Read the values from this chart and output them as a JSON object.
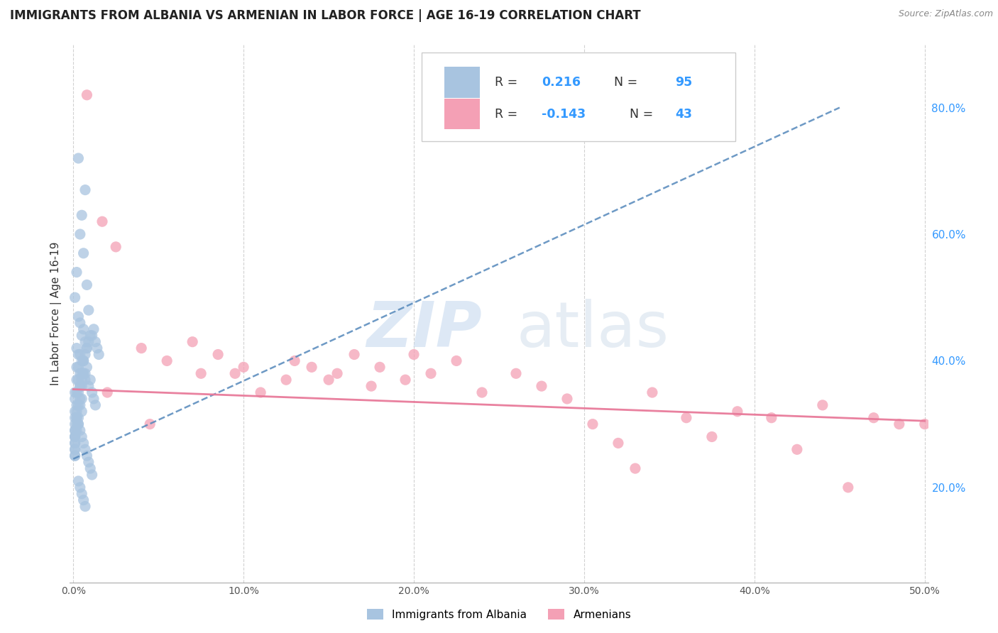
{
  "title": "IMMIGRANTS FROM ALBANIA VS ARMENIAN IN LABOR FORCE | AGE 16-19 CORRELATION CHART",
  "source": "Source: ZipAtlas.com",
  "ylabel": "In Labor Force | Age 16-19",
  "xlim": [
    -0.002,
    0.502
  ],
  "ylim": [
    0.05,
    0.9
  ],
  "xticks": [
    0.0,
    0.1,
    0.2,
    0.3,
    0.4,
    0.5
  ],
  "xticklabels": [
    "0.0%",
    "10.0%",
    "20.0%",
    "30.0%",
    "40.0%",
    "50.0%"
  ],
  "yticks_right": [
    0.2,
    0.4,
    0.6,
    0.8
  ],
  "yticklabels_right": [
    "20.0%",
    "40.0%",
    "60.0%",
    "80.0%"
  ],
  "albania_color": "#a8c4e0",
  "armenian_color": "#f4a0b5",
  "albania_trend_color": "#5588bb",
  "armenian_trend_color": "#e87a9a",
  "legend_labels": [
    "Immigrants from Albania",
    "Armenians"
  ],
  "albania_R": "0.216",
  "albania_N": "95",
  "armenian_R": "-0.143",
  "armenian_N": "43",
  "albania_points_x": [
    0.003,
    0.007,
    0.005,
    0.004,
    0.006,
    0.002,
    0.008,
    0.001,
    0.009,
    0.003,
    0.004,
    0.006,
    0.005,
    0.007,
    0.002,
    0.008,
    0.003,
    0.004,
    0.005,
    0.006,
    0.002,
    0.003,
    0.004,
    0.005,
    0.006,
    0.007,
    0.002,
    0.003,
    0.004,
    0.005,
    0.001,
    0.002,
    0.003,
    0.004,
    0.005,
    0.001,
    0.002,
    0.003,
    0.004,
    0.005,
    0.001,
    0.002,
    0.003,
    0.001,
    0.002,
    0.003,
    0.001,
    0.002,
    0.001,
    0.002,
    0.001,
    0.001,
    0.001,
    0.001,
    0.001,
    0.001,
    0.001,
    0.001,
    0.001,
    0.001,
    0.006,
    0.007,
    0.008,
    0.009,
    0.01,
    0.011,
    0.012,
    0.013,
    0.014,
    0.015,
    0.004,
    0.005,
    0.006,
    0.007,
    0.008,
    0.009,
    0.01,
    0.011,
    0.012,
    0.013,
    0.002,
    0.003,
    0.004,
    0.005,
    0.006,
    0.007,
    0.008,
    0.009,
    0.01,
    0.011,
    0.003,
    0.004,
    0.005,
    0.006,
    0.007
  ],
  "albania_points_y": [
    0.72,
    0.67,
    0.63,
    0.6,
    0.57,
    0.54,
    0.52,
    0.5,
    0.48,
    0.47,
    0.46,
    0.45,
    0.44,
    0.43,
    0.42,
    0.42,
    0.41,
    0.41,
    0.4,
    0.4,
    0.39,
    0.39,
    0.38,
    0.38,
    0.38,
    0.37,
    0.37,
    0.37,
    0.36,
    0.36,
    0.35,
    0.35,
    0.35,
    0.34,
    0.34,
    0.34,
    0.33,
    0.33,
    0.33,
    0.32,
    0.32,
    0.32,
    0.31,
    0.31,
    0.31,
    0.3,
    0.3,
    0.3,
    0.29,
    0.29,
    0.29,
    0.28,
    0.28,
    0.28,
    0.27,
    0.27,
    0.26,
    0.26,
    0.25,
    0.25,
    0.4,
    0.41,
    0.42,
    0.43,
    0.44,
    0.44,
    0.45,
    0.43,
    0.42,
    0.41,
    0.36,
    0.37,
    0.38,
    0.38,
    0.39,
    0.36,
    0.37,
    0.35,
    0.34,
    0.33,
    0.31,
    0.3,
    0.29,
    0.28,
    0.27,
    0.26,
    0.25,
    0.24,
    0.23,
    0.22,
    0.21,
    0.2,
    0.19,
    0.18,
    0.17
  ],
  "armenian_points_x": [
    0.008,
    0.017,
    0.025,
    0.04,
    0.055,
    0.07,
    0.085,
    0.095,
    0.11,
    0.125,
    0.14,
    0.155,
    0.165,
    0.18,
    0.195,
    0.21,
    0.225,
    0.24,
    0.26,
    0.275,
    0.29,
    0.305,
    0.32,
    0.34,
    0.36,
    0.375,
    0.39,
    0.41,
    0.425,
    0.44,
    0.455,
    0.47,
    0.485,
    0.02,
    0.045,
    0.075,
    0.1,
    0.13,
    0.15,
    0.175,
    0.2,
    0.33,
    0.5
  ],
  "armenian_points_y": [
    0.82,
    0.62,
    0.58,
    0.42,
    0.4,
    0.43,
    0.41,
    0.38,
    0.35,
    0.37,
    0.39,
    0.38,
    0.41,
    0.39,
    0.37,
    0.38,
    0.4,
    0.35,
    0.38,
    0.36,
    0.34,
    0.3,
    0.27,
    0.35,
    0.31,
    0.28,
    0.32,
    0.31,
    0.26,
    0.33,
    0.2,
    0.31,
    0.3,
    0.35,
    0.3,
    0.38,
    0.39,
    0.4,
    0.37,
    0.36,
    0.41,
    0.23,
    0.3
  ],
  "alb_trendline_x": [
    0.0,
    0.45
  ],
  "alb_trendline_y": [
    0.245,
    0.8
  ],
  "arm_trendline_x": [
    0.0,
    0.5
  ],
  "arm_trendline_y": [
    0.355,
    0.305
  ]
}
